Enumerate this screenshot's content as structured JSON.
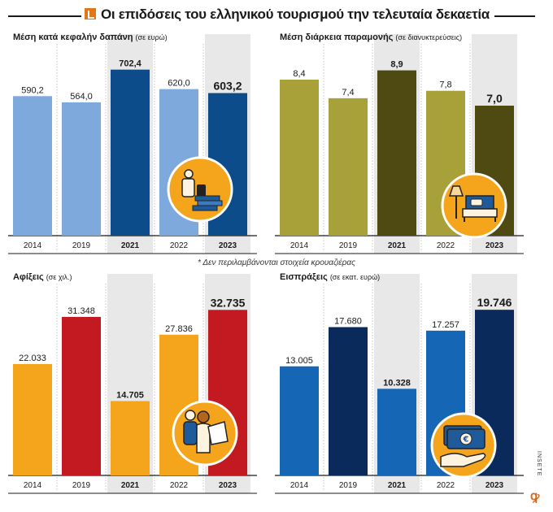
{
  "header": {
    "title": "Οι επιδόσεις του ελληνικού τουρισμού την τελευταία δεκαετία"
  },
  "footnote": "* Δεν περιλαμβάνονται στοιχεία κρουαζιέρας",
  "credit": "INSETE",
  "brand_glyph": "ꝙ",
  "chart_data": [
    {
      "type": "bar",
      "title": "Μέση κατά κεφαλήν δαπάνη",
      "unit": "(σε ευρώ)",
      "categories": [
        "2014",
        "2019",
        "2021",
        "2022",
        "2023"
      ],
      "values": [
        590.2,
        564.0,
        702.4,
        620.0,
        603.2
      ],
      "labels": [
        "590,2",
        "564,0",
        "702,4",
        "620,0",
        "603,2"
      ],
      "highlight": [
        2,
        4
      ],
      "colors": [
        "#7ea9dc",
        "#7ea9dc",
        "#0d4c8a",
        "#7ea9dc",
        "#0d4c8a"
      ],
      "ylim": [
        0,
        770
      ],
      "icon": "tourist-luggage-money-icon"
    },
    {
      "type": "bar",
      "title": "Μέση διάρκεια παραμονής",
      "unit": "(σε διανυκτερεύσεις)",
      "categories": [
        "2014",
        "2019",
        "2021",
        "2022",
        "2023"
      ],
      "values": [
        8.4,
        7.4,
        8.9,
        7.8,
        7.0
      ],
      "labels": [
        "8,4",
        "7,4",
        "8,9",
        "7,8",
        "7,0"
      ],
      "highlight": [
        2,
        4
      ],
      "colors": [
        "#a8a13a",
        "#a8a13a",
        "#4f4a12",
        "#a8a13a",
        "#4f4a12"
      ],
      "ylim": [
        0,
        9.8
      ],
      "icon": "hotel-bed-icon"
    },
    {
      "type": "bar",
      "title": "Αφίξεις",
      "unit": "(σε χιλ.)",
      "categories": [
        "2014",
        "2019",
        "2021",
        "2022",
        "2023"
      ],
      "values": [
        22033,
        31348,
        14705,
        27836,
        32735
      ],
      "labels": [
        "22.033",
        "31.348",
        "14.705",
        "27.836",
        "32.735"
      ],
      "highlight": [
        2,
        4
      ],
      "colors": [
        "#f5a51c",
        "#c21a20",
        "#f5a51c",
        "#f5a51c",
        "#c21a20"
      ],
      "ylim": [
        0,
        36000
      ],
      "icon": "backpacker-icon"
    },
    {
      "type": "bar",
      "title": "Εισπράξεις",
      "unit": "(σε εκατ. ευρώ)",
      "categories": [
        "2014",
        "2019",
        "2021",
        "2022",
        "2023"
      ],
      "values": [
        13005,
        17680,
        10328,
        17257,
        19746
      ],
      "labels": [
        "13.005",
        "17.680",
        "10.328",
        "17.257",
        "19.746"
      ],
      "highlight": [
        2,
        4
      ],
      "colors": [
        "#1566b4",
        "#0b2a5c",
        "#1566b4",
        "#1566b4",
        "#0b2a5c"
      ],
      "ylim": [
        0,
        21700
      ],
      "icon": "euro-banknote-hand-icon"
    }
  ]
}
